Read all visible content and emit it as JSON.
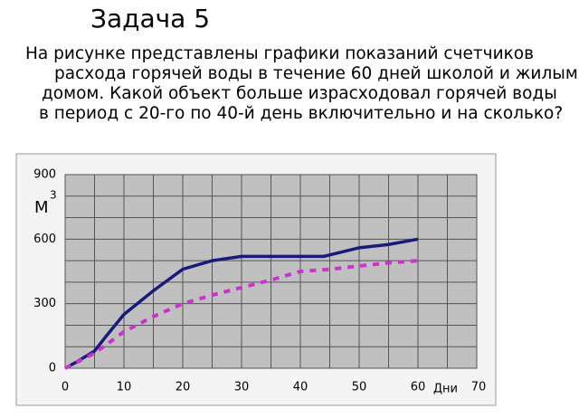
{
  "heading": "Задача 5",
  "problem_lines": [
    "На рисунке представлены графики показаний счетчиков",
    "расхода горячей воды в течение 60 дней школой и жилым",
    "домом. Какой объект больше израсходовал горячей воды",
    "в период с 20-го по 40-й день включительно и на сколько?"
  ],
  "chart_data": {
    "type": "line",
    "y_label": "М",
    "y_label_sup": "3",
    "x_label": "Дни",
    "xlim": [
      0,
      70
    ],
    "xticks": [
      0,
      10,
      20,
      30,
      40,
      50,
      60,
      70
    ],
    "ylim": [
      0,
      900
    ],
    "yticks": [
      0,
      300,
      600,
      900
    ],
    "minor_xticks": [
      5,
      15,
      25,
      35,
      45,
      55,
      65
    ],
    "minor_yticks": [
      100,
      200,
      400,
      500,
      700,
      800
    ],
    "grid": true,
    "series": [
      {
        "color": "#1a1a7a",
        "dash": false,
        "x": [
          0,
          2,
          5,
          7,
          10,
          15,
          20,
          25,
          30,
          35,
          40,
          44,
          50,
          55,
          60
        ],
        "values": [
          0,
          30,
          80,
          150,
          250,
          360,
          460,
          500,
          520,
          520,
          520,
          520,
          560,
          575,
          600
        ]
      },
      {
        "color": "#cc33cc",
        "dash": true,
        "x": [
          0,
          5,
          10,
          15,
          20,
          25,
          30,
          35,
          40,
          45,
          50,
          55,
          60
        ],
        "values": [
          0,
          70,
          170,
          240,
          300,
          340,
          375,
          410,
          450,
          460,
          475,
          490,
          500
        ]
      }
    ]
  }
}
